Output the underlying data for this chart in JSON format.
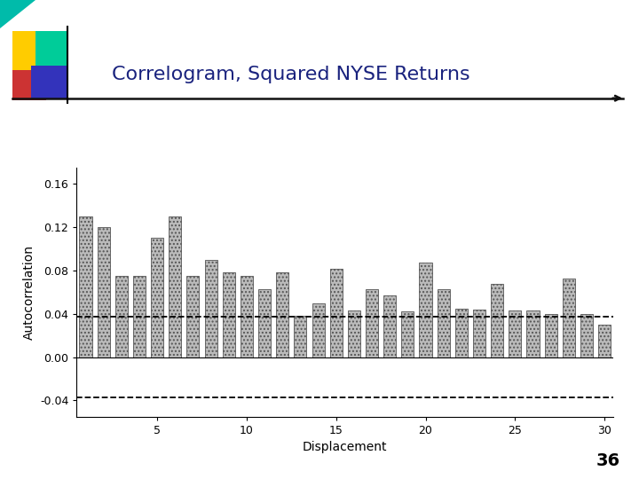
{
  "title": "Correlogram, Squared NYSE Returns",
  "xlabel": "Displacement",
  "ylabel": "Autocorrelation",
  "bar_values": [
    0.13,
    0.12,
    0.075,
    0.075,
    0.11,
    0.13,
    0.075,
    0.09,
    0.078,
    0.075,
    0.063,
    0.078,
    0.038,
    0.05,
    0.082,
    0.043,
    0.063,
    0.057,
    0.042,
    0.087,
    0.063,
    0.045,
    0.044,
    0.068,
    0.043,
    0.043,
    0.04,
    0.073,
    0.04,
    0.03
  ],
  "displacements": [
    1,
    2,
    3,
    4,
    5,
    6,
    7,
    8,
    9,
    10,
    11,
    12,
    13,
    14,
    15,
    16,
    17,
    18,
    19,
    20,
    21,
    22,
    23,
    24,
    25,
    26,
    27,
    28,
    29,
    30
  ],
  "upper_ci": 0.037,
  "lower_ci": -0.037,
  "ylim": [
    -0.055,
    0.175
  ],
  "yticks": [
    -0.04,
    0.0,
    0.04,
    0.08,
    0.12,
    0.16
  ],
  "xticks": [
    5,
    10,
    15,
    20,
    25,
    30
  ],
  "bar_color": "#bbbbbb",
  "bar_edgecolor": "#555555",
  "ci_color": "black",
  "background_color": "#ffffff",
  "title_color": "#1a237e",
  "title_fontsize": 16,
  "axis_label_fontsize": 10,
  "tick_fontsize": 9,
  "slide_number": "36",
  "sq1_color": "#ffcc00",
  "sq2_color": "#00cc99",
  "sq3_color": "#cc3333",
  "sq4_color": "#3333bb",
  "sq5_color": "#6699cc",
  "arrow_color": "#111111",
  "teal_triangle_color": "#00bbaa"
}
